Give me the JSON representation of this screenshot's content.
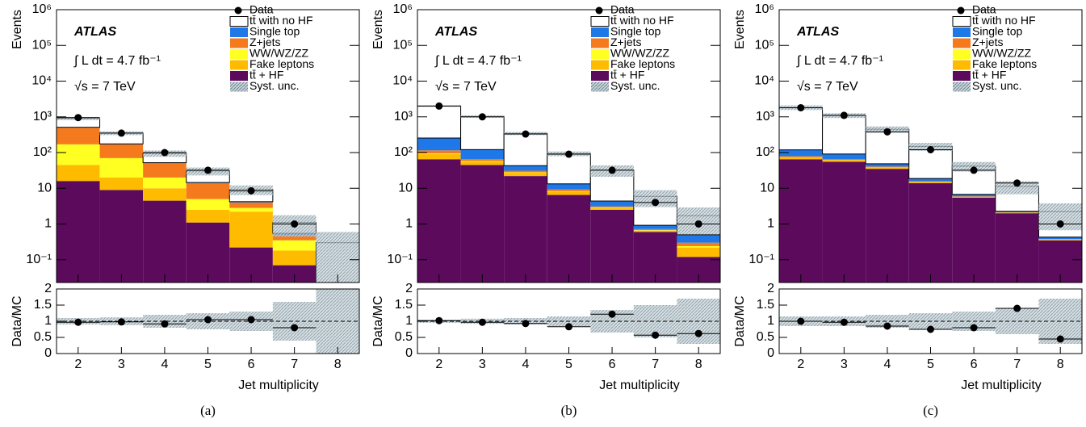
{
  "chart_data": [
    {
      "type": "bar",
      "stacked": true,
      "log_y": true,
      "caption": "(a)",
      "ylabel": "Events",
      "xlabel": "Jet multiplicity",
      "atlas_label": "ATLAS",
      "lumi_label": "∫ L dt = 4.7 fb⁻¹",
      "energy_label": "√s = 7 TeV",
      "x": [
        2,
        3,
        4,
        5,
        6,
        7,
        8
      ],
      "xlim": [
        1.5,
        8.5
      ],
      "xticks": [
        2,
        3,
        4,
        5,
        6,
        7,
        8
      ],
      "ylim": [
        0.023,
        1000000
      ],
      "yticks": [
        {
          "value": 0.1,
          "label": "10⁻¹"
        },
        1,
        10,
        {
          "value": 100,
          "label": "10²"
        },
        {
          "value": 1000,
          "label": "10³"
        },
        {
          "value": 10000,
          "label": "10⁴"
        },
        {
          "value": 100000,
          "label": "10⁵"
        },
        {
          "value": 1000000,
          "label": "10⁶"
        }
      ],
      "data": {
        "name": "Data",
        "values": [
          950,
          350,
          100,
          32,
          8.5,
          1,
          null
        ]
      },
      "series": [
        {
          "name": "tt̄ with no HF",
          "color": "#ffffff",
          "values": [
            390,
            175,
            43,
            16,
            5,
            0.55,
            0.3
          ]
        },
        {
          "name": "Single top",
          "color": "#1f78e8",
          "values": [
            10,
            5,
            2,
            0.5,
            0.2,
            0.05,
            0
          ]
        },
        {
          "name": "Z+jets",
          "color": "#f57a1e",
          "values": [
            330,
            100,
            30,
            9,
            1.2,
            0.15,
            0
          ]
        },
        {
          "name": "WW/WZ/ZZ",
          "color": "#ffff22",
          "values": [
            125,
            50,
            10,
            2.5,
            0.6,
            0.17,
            0
          ]
        },
        {
          "name": "Fake leptons",
          "color": "#ffbb00",
          "values": [
            29,
            11,
            5.5,
            1.4,
            2,
            0.11,
            0
          ]
        },
        {
          "name": "tt̄ + HF",
          "color": "#5c0a5c",
          "values": [
            16,
            9,
            4.5,
            1.1,
            0.22,
            0.07,
            0
          ]
        }
      ],
      "syst": {
        "name": "Syst. unc.",
        "color": "#a8b8c0",
        "values": [
          0.1,
          0.12,
          0.2,
          0.25,
          0.3,
          0.6,
          1.0
        ]
      },
      "ratio": {
        "ylabel": "Data/MC",
        "ylim": [
          0,
          2
        ],
        "yticks": [
          0,
          0.5,
          1,
          1.5,
          2
        ],
        "values": [
          0.97,
          0.98,
          0.92,
          1.05,
          1.05,
          0.8,
          null
        ]
      }
    },
    {
      "type": "bar",
      "stacked": true,
      "log_y": true,
      "caption": "(b)",
      "ylabel": "Events",
      "xlabel": "Jet multiplicity",
      "atlas_label": "ATLAS",
      "lumi_label": "∫ L dt = 4.7 fb⁻¹",
      "energy_label": "√s = 7 TeV",
      "x": [
        2,
        3,
        4,
        5,
        6,
        7,
        8
      ],
      "xlim": [
        1.5,
        8.5
      ],
      "xticks": [
        2,
        3,
        4,
        5,
        6,
        7,
        8
      ],
      "ylim": [
        0.023,
        1000000
      ],
      "yticks": [
        {
          "value": 0.1,
          "label": "10⁻¹"
        },
        1,
        10,
        {
          "value": 100,
          "label": "10²"
        },
        {
          "value": 1000,
          "label": "10³"
        },
        {
          "value": 10000,
          "label": "10⁴"
        },
        {
          "value": 100000,
          "label": "10⁵"
        },
        {
          "value": 1000000,
          "label": "10⁶"
        }
      ],
      "data": {
        "name": "Data",
        "values": [
          2000,
          1000,
          330,
          90,
          32,
          4,
          1
        ]
      },
      "series": [
        {
          "name": "tt̄ with no HF",
          "color": "#ffffff",
          "values": [
            1750,
            900,
            300,
            80,
            28,
            5,
            1.2
          ]
        },
        {
          "name": "Single top",
          "color": "#1f78e8",
          "values": [
            140,
            55,
            12,
            4,
            1.3,
            0.2,
            0.2
          ]
        },
        {
          "name": "Z+jets",
          "color": "#f57a1e",
          "values": [
            20,
            8,
            3,
            1,
            0.2,
            0.05,
            0.06
          ]
        },
        {
          "name": "WW/WZ/ZZ",
          "color": "#ffff22",
          "values": [
            5,
            3,
            1,
            0.3,
            0.1,
            0.02,
            0.02
          ]
        },
        {
          "name": "Fake leptons",
          "color": "#ffbb00",
          "values": [
            25,
            10,
            5,
            1.5,
            0.3,
            0.05,
            0.1
          ]
        },
        {
          "name": "tt̄ + HF",
          "color": "#5c0a5c",
          "values": [
            65,
            45,
            22,
            6.5,
            2.5,
            0.6,
            0.12
          ]
        }
      ],
      "syst": {
        "name": "Syst. unc.",
        "color": "#a8b8c0",
        "values": [
          0.05,
          0.08,
          0.1,
          0.15,
          0.35,
          0.5,
          0.7
        ]
      },
      "ratio": {
        "ylabel": "Data/MC",
        "ylim": [
          0,
          2
        ],
        "yticks": [
          0,
          0.5,
          1,
          1.5,
          2
        ],
        "values": [
          1.02,
          0.97,
          0.93,
          0.83,
          1.22,
          0.57,
          0.62
        ]
      }
    },
    {
      "type": "bar",
      "stacked": true,
      "log_y": true,
      "caption": "(c)",
      "ylabel": "Events",
      "xlabel": "Jet multiplicity",
      "atlas_label": "ATLAS",
      "lumi_label": "∫ L dt = 4.7 fb⁻¹",
      "energy_label": "√s = 7 TeV",
      "x": [
        2,
        3,
        4,
        5,
        6,
        7,
        8
      ],
      "xlim": [
        1.5,
        8.5
      ],
      "xticks": [
        2,
        3,
        4,
        5,
        6,
        7,
        8
      ],
      "ylim": [
        0.023,
        1000000
      ],
      "yticks": [
        {
          "value": 0.1,
          "label": "10⁻¹"
        },
        1,
        10,
        {
          "value": 100,
          "label": "10²"
        },
        {
          "value": 1000,
          "label": "10³"
        },
        {
          "value": 10000,
          "label": "10⁴"
        },
        {
          "value": 100000,
          "label": "10⁵"
        },
        {
          "value": 1000000,
          "label": "10⁶"
        }
      ],
      "data": {
        "name": "Data",
        "values": [
          1800,
          1100,
          380,
          120,
          32,
          14,
          1
        ]
      },
      "series": [
        {
          "name": "tt̄ with no HF",
          "color": "#ffffff",
          "values": [
            1700,
            1000,
            400,
            130,
            35,
            9,
            1.8
          ]
        },
        {
          "name": "Single top",
          "color": "#1f78e8",
          "values": [
            40,
            25,
            8,
            3,
            0.8,
            0.15,
            0.05
          ]
        },
        {
          "name": "Z+jets",
          "color": "#f57a1e",
          "values": [
            5,
            4,
            2,
            0.6,
            0.2,
            0.05,
            0.01
          ]
        },
        {
          "name": "WW/WZ/ZZ",
          "color": "#ffff22",
          "values": [
            1,
            1,
            0.5,
            0.2,
            0.05,
            0.02,
            0.01
          ]
        },
        {
          "name": "Fake leptons",
          "color": "#ffbb00",
          "values": [
            8,
            6,
            3,
            1,
            0.2,
            0.05,
            0.01
          ]
        },
        {
          "name": "tt̄ + HF",
          "color": "#5c0a5c",
          "values": [
            65,
            55,
            35,
            14,
            5.5,
            2,
            0.35
          ]
        }
      ],
      "syst": {
        "name": "Syst. unc.",
        "color": "#a8b8c0",
        "values": [
          0.15,
          0.15,
          0.2,
          0.25,
          0.3,
          0.4,
          0.7
        ]
      },
      "ratio": {
        "ylabel": "Data/MC",
        "ylim": [
          0,
          2
        ],
        "yticks": [
          0,
          0.5,
          1,
          1.5,
          2
        ],
        "values": [
          1.0,
          0.97,
          0.85,
          0.75,
          0.8,
          1.4,
          0.45
        ]
      }
    }
  ]
}
